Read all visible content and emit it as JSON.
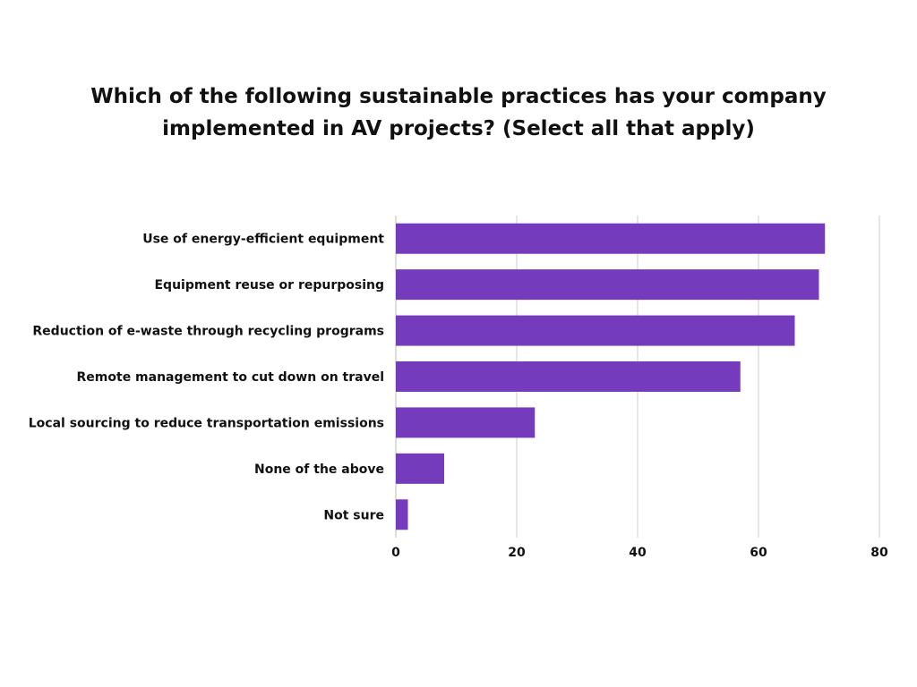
{
  "chart_data": {
    "type": "bar",
    "orientation": "horizontal",
    "title": "Which of the following sustainable practices has your company implemented in AV projects? (Select all that apply)",
    "categories": [
      "Use of energy-efficient equipment",
      "Equipment reuse or repurposing",
      "Reduction of e-waste through recycling programs",
      "Remote management to cut down on travel",
      "Local sourcing to reduce transportation emissions",
      "None of the above",
      "Not sure"
    ],
    "values": [
      71,
      70,
      66,
      57,
      23,
      8,
      2
    ],
    "xlim": [
      0,
      80
    ],
    "xticks": [
      0,
      20,
      40,
      60,
      80
    ],
    "xlabel": "",
    "ylabel": "",
    "grid": true,
    "bar_color": "#743cbd",
    "grid_color": "#cccccc"
  }
}
